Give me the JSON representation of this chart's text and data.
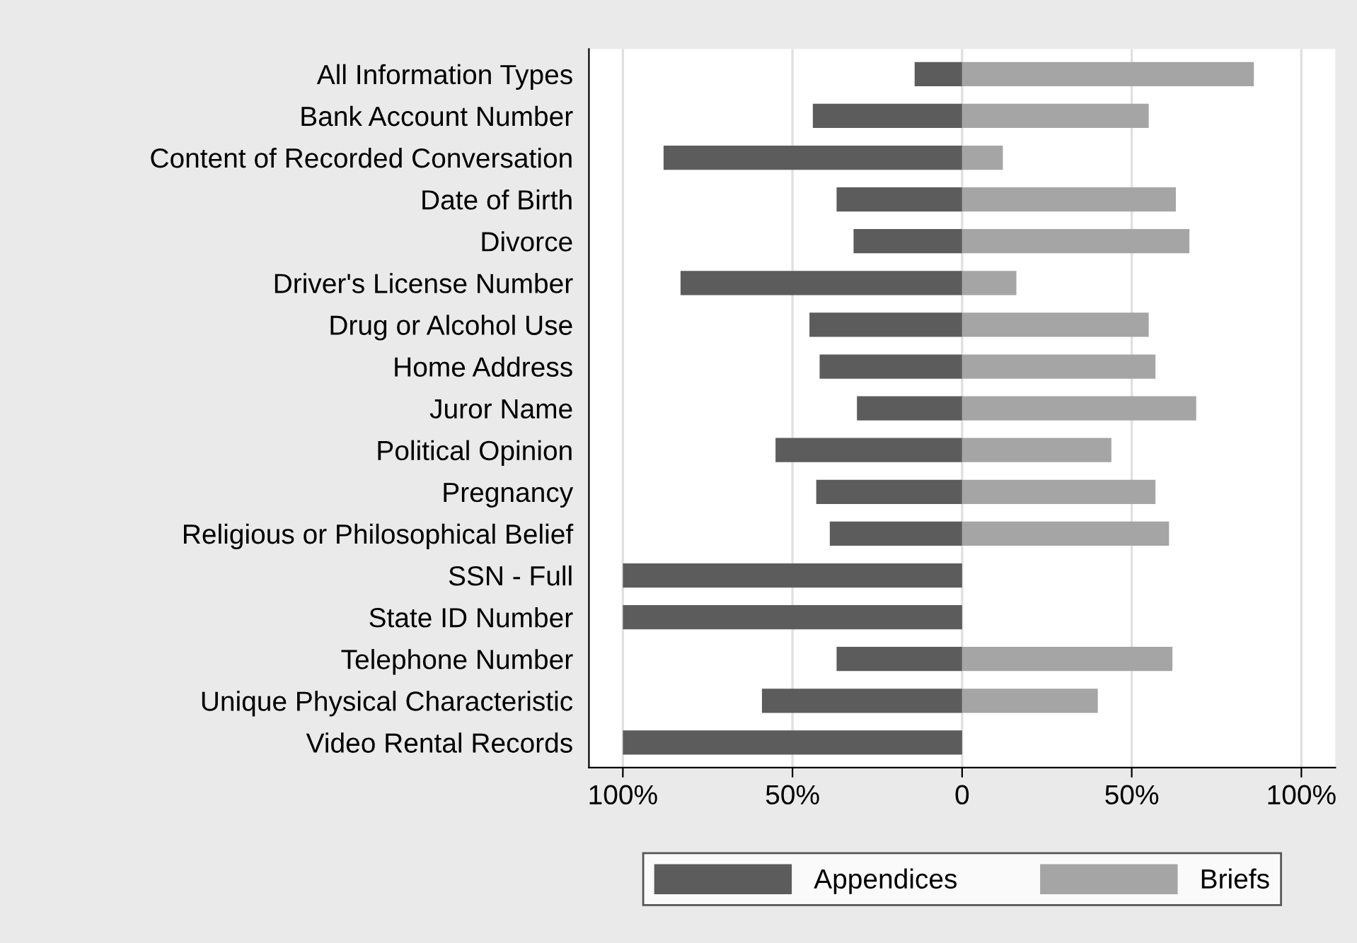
{
  "chart_data": {
    "type": "bar",
    "orientation": "horizontal",
    "categories": [
      "All Information Types",
      "Bank Account Number",
      "Content of Recorded Conversation",
      "Date of Birth",
      "Divorce",
      "Driver's License Number",
      "Drug or Alcohol Use",
      "Home Address",
      "Juror Name",
      "Political Opinion",
      "Pregnancy",
      "Religious or Philosophical Belief",
      "SSN - Full",
      "State ID Number",
      "Telephone Number",
      "Unique Physical Characteristic",
      "Video Rental Records"
    ],
    "series": [
      {
        "name": "Appendices",
        "color": "#5c5c5c",
        "values": [
          -14,
          -44,
          -88,
          -37,
          -32,
          -83,
          -45,
          -42,
          -31,
          -55,
          -43,
          -39,
          -100,
          -100,
          -37,
          -59,
          -100
        ]
      },
      {
        "name": "Briefs",
        "color": "#a5a5a5",
        "values": [
          86,
          55,
          12,
          63,
          67,
          16,
          55,
          57,
          69,
          44,
          57,
          61,
          0,
          0,
          62,
          40,
          0
        ]
      }
    ],
    "xlim": [
      -110,
      110
    ],
    "xticks": [
      {
        "value": -100,
        "label": "100%"
      },
      {
        "value": -50,
        "label": "50%"
      },
      0,
      {
        "value": 50,
        "label": "50%"
      },
      {
        "value": 100,
        "label": "100%"
      }
    ],
    "grid": "x",
    "legend": "bottom",
    "stacked": true
  }
}
